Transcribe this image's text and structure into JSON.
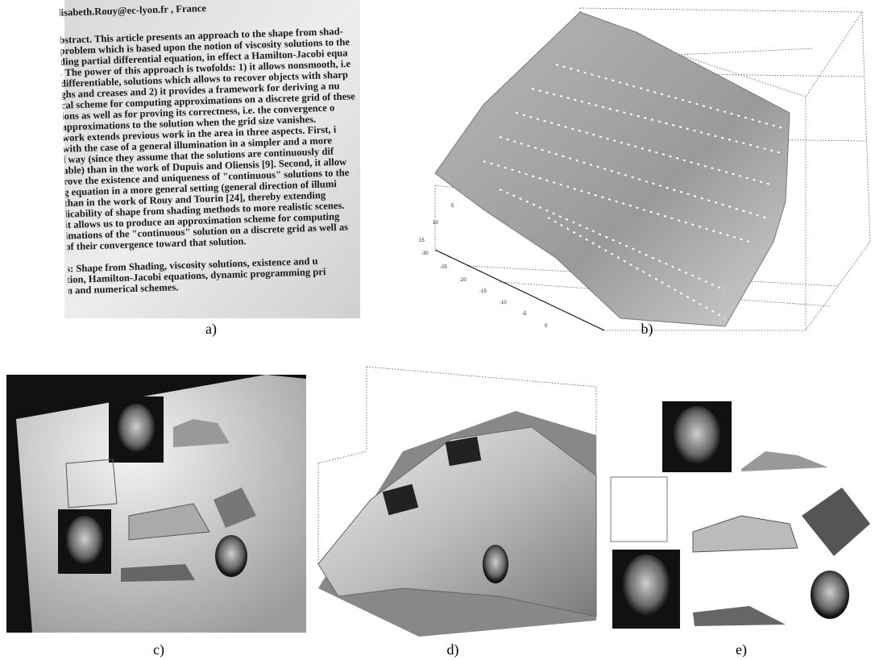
{
  "panels": [
    {
      "caption": "a)",
      "text_lines": [
        "lisabeth.Rouy@ec-lyon.fr                              , France",
        "bstract. This article presents an approach to the shape from shad-",
        "problem which is based upon the notion of viscosity solutions to the",
        "ding partial differential equation, in effect a Hamilton-Jacobi equa",
        ". The power of this approach is twofolds: 1) it allows nonsmooth, i.e",
        "differentiable, solutions which allows to recover objects with sharp",
        "ghs and creases and 2) it provides a framework for deriving a nu",
        "cal scheme for computing approximations on a discrete grid of these",
        "ions as well as for proving its correctness, i.e. the convergence o",
        "approximations to the solution when the grid size vanishes.",
        "work extends previous work in the area in three aspects. First, i",
        "with the case of a general illumination in a simpler and a more",
        "l way (since they assume that the solutions are continuously dif",
        "able) than in the work of Dupuis and Oliensis [9]. Second, it allow",
        "rove the existence and uniqueness of \"continuous\" solutions to the",
        "g equation in a more general setting (general direction of illumi",
        " than in the work of Rouy and Tourin [24], thereby extending",
        "licability of shape from shading methods to more realistic scenes.",
        "it allows us to produce an approximation scheme for computing",
        "imations of the \"continuous\" solution on a discrete grid as well as",
        "of their convergence toward that solution.",
        "s: Shape from Shading, viscosity solutions, existence and u",
        "tion, Hamilton-Jacobi equations, dynamic programming pri",
        "n and numerical schemes."
      ]
    },
    {
      "caption": "b)",
      "axis_labels": [
        "-30",
        "-25",
        "-20",
        "-15",
        "-10",
        "-5",
        "0",
        "15",
        "10",
        "5"
      ]
    },
    {
      "caption": "c)"
    },
    {
      "caption": "d)"
    },
    {
      "caption": "e)"
    }
  ]
}
